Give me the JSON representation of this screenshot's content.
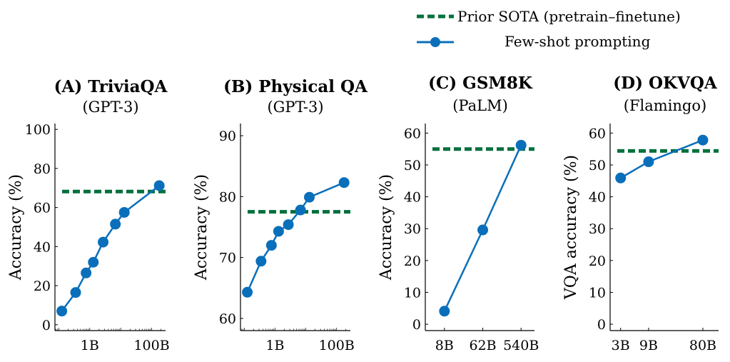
{
  "colors": {
    "sota": "#00703c",
    "series": "#0a6fba",
    "axis": "#000000"
  },
  "legend": {
    "sota_label": "Prior SOTA (pretrain–finetune)",
    "series_label": "Few-shot prompting"
  },
  "chart_data": [
    {
      "type": "line",
      "title": "(A) TriviaQA",
      "subtitle": "(GPT-3)",
      "ylabel": "Accuracy (%)",
      "xscale": "log",
      "xlim": [
        0.075,
        280
      ],
      "ylim": [
        -3,
        103
      ],
      "yticks": [
        0,
        20,
        40,
        60,
        80,
        100
      ],
      "xticks": [
        {
          "value": 1,
          "label": "1B"
        },
        {
          "value": 100,
          "label": "100B"
        }
      ],
      "x": [
        0.125,
        0.35,
        0.76,
        1.3,
        2.7,
        6.7,
        13,
        175
      ],
      "y": [
        7,
        16.5,
        26.5,
        32,
        42.3,
        51.5,
        57.5,
        71.2
      ],
      "sota": 68.2
    },
    {
      "type": "line",
      "title": "(B) Physical QA",
      "subtitle": "(GPT-3)",
      "ylabel": "Accuracy (%)",
      "xscale": "log",
      "xlim": [
        0.075,
        280
      ],
      "ylim": [
        58,
        92
      ],
      "yticks": [
        60,
        70,
        80,
        90
      ],
      "xticks": [
        {
          "value": 1,
          "label": "1B"
        },
        {
          "value": 100,
          "label": "100B"
        }
      ],
      "x": [
        0.125,
        0.35,
        0.76,
        1.3,
        2.7,
        6.7,
        13,
        175
      ],
      "y": [
        64.3,
        69.4,
        72,
        74.3,
        75.4,
        77.8,
        79.9,
        82.3
      ],
      "sota": 77.5
    },
    {
      "type": "line",
      "title": "(C) GSM8K",
      "subtitle": "(PaLM)",
      "ylabel": "Accuracy (%)",
      "xscale": "category",
      "categories": [
        "8B",
        "62B",
        "540B"
      ],
      "xlim": [
        -0.5,
        2.35
      ],
      "ylim": [
        -2,
        63
      ],
      "yticks": [
        0,
        10,
        20,
        30,
        40,
        50,
        60
      ],
      "y": [
        4.1,
        29.6,
        56.2
      ],
      "sota": 55
    },
    {
      "type": "line",
      "title": "(D) OKVQA",
      "subtitle": "(Flamingo)",
      "ylabel": "VQA accuracy (%)",
      "xscale": "category",
      "categories": [
        "3B",
        "9B",
        "80B"
      ],
      "category_positions": [
        0,
        0.8,
        2.35
      ],
      "xlim": [
        -0.3,
        2.8
      ],
      "ylim": [
        -2,
        63
      ],
      "yticks": [
        0,
        10,
        20,
        30,
        40,
        50,
        60
      ],
      "y": [
        45.9,
        51,
        57.8
      ],
      "sota": 54.4
    }
  ]
}
